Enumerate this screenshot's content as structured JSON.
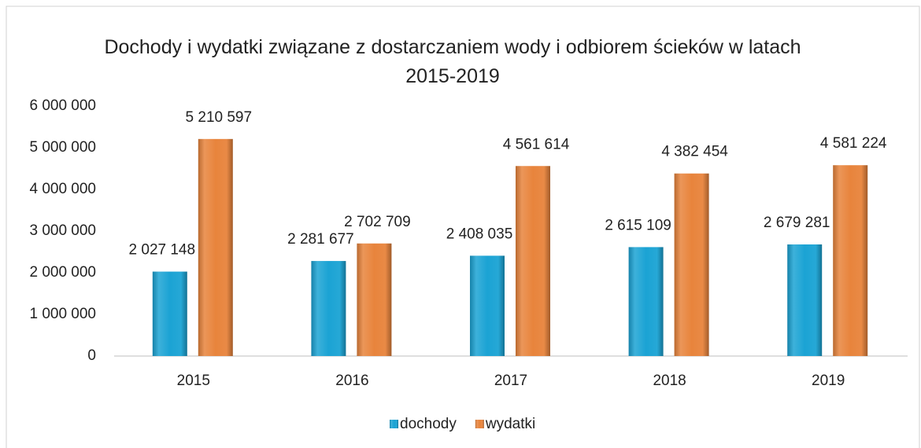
{
  "chart_data": {
    "type": "bar",
    "title": "Dochody i wydatki związane z dostarczaniem wody i odbiorem ścieków w latach 2015-2019",
    "categories": [
      "2015",
      "2016",
      "2017",
      "2018",
      "2019"
    ],
    "series": [
      {
        "name": "dochody",
        "color": "#1ba3d4",
        "values": [
          2027148,
          2281677,
          2408035,
          2615109,
          2679281
        ],
        "value_labels": [
          "2 027 148",
          "2 281 677",
          "2 408 035",
          "2 615 109",
          "2 679 281"
        ]
      },
      {
        "name": "wydatki",
        "color": "#e8843c",
        "values": [
          5210597,
          2702709,
          4561614,
          4382454,
          4581224
        ],
        "value_labels": [
          "5 210 597",
          "2 702 709",
          "4 561 614",
          "4 382 454",
          "4 581 224"
        ]
      }
    ],
    "ylim": [
      0,
      6000000
    ],
    "yticks": [
      0,
      {
        "value": 1000000,
        "label": "1 000 000"
      },
      {
        "value": 2000000,
        "label": "2 000 000"
      },
      {
        "value": 3000000,
        "label": "3 000 000"
      },
      {
        "value": 4000000,
        "label": "4 000 000"
      },
      {
        "value": 5000000,
        "label": "5 000 000"
      },
      {
        "value": 6000000,
        "label": "6 000 000"
      }
    ],
    "grid": false,
    "legend": "bottom"
  }
}
